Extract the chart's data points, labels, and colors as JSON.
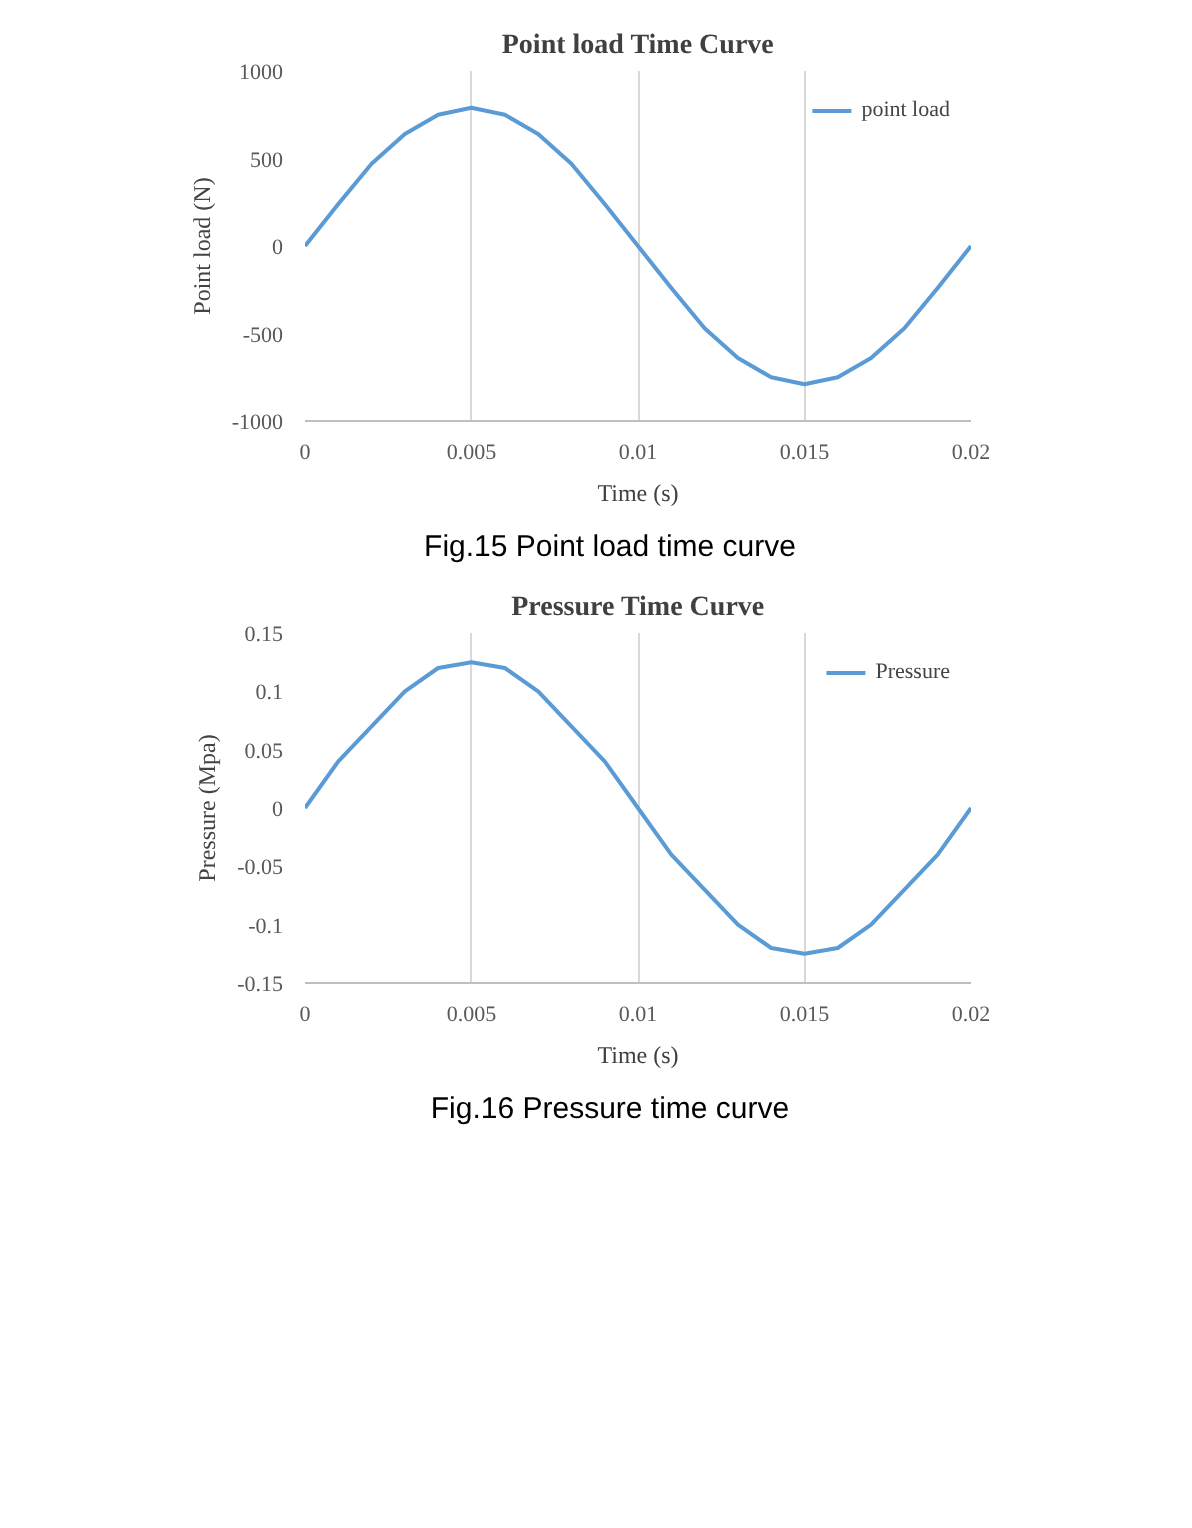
{
  "chart_data": [
    {
      "type": "line",
      "title": "Point load Time Curve",
      "xlabel": "Time (s)",
      "ylabel": "Point load (N)",
      "annotations": [
        "Fig.15 Point load time curve"
      ],
      "x": [
        0,
        0.001,
        0.002,
        0.003,
        0.004,
        0.005,
        0.006,
        0.007,
        0.008,
        0.009,
        0.01,
        0.011,
        0.012,
        0.013,
        0.014,
        0.015,
        0.016,
        0.017,
        0.018,
        0.019,
        0.02
      ],
      "series": [
        {
          "name": "point load",
          "color": "#5b9bd5",
          "values": [
            0,
            240,
            470,
            640,
            750,
            790,
            750,
            640,
            470,
            240,
            0,
            -240,
            -470,
            -640,
            -750,
            -790,
            -750,
            -640,
            -470,
            -240,
            0
          ]
        }
      ],
      "xlim": [
        0,
        0.02
      ],
      "xticks": [
        0,
        0.005,
        0.01,
        0.015,
        0.02
      ],
      "ylim": [
        -1000,
        1000
      ],
      "yticks": [
        -1000,
        -500,
        0,
        500,
        1000
      ],
      "grid": "x",
      "legend": "top right"
    },
    {
      "type": "line",
      "title": "Pressure Time Curve",
      "xlabel": "Time (s)",
      "ylabel": "Pressure (Mpa)",
      "annotations": [
        "Fig.16 Pressure time curve"
      ],
      "x": [
        0,
        0.001,
        0.002,
        0.003,
        0.004,
        0.005,
        0.006,
        0.007,
        0.008,
        0.009,
        0.01,
        0.011,
        0.012,
        0.013,
        0.014,
        0.015,
        0.016,
        0.017,
        0.018,
        0.019,
        0.02
      ],
      "series": [
        {
          "name": "Pressure",
          "color": "#5b9bd5",
          "values": [
            0,
            0.04,
            0.07,
            0.1,
            0.12,
            0.125,
            0.12,
            0.1,
            0.07,
            0.04,
            0,
            -0.04,
            -0.07,
            -0.1,
            -0.12,
            -0.125,
            -0.12,
            -0.1,
            -0.07,
            -0.04,
            0
          ]
        }
      ],
      "xlim": [
        0,
        0.02
      ],
      "xticks": [
        0,
        0.005,
        0.01,
        0.015,
        0.02
      ],
      "ylim": [
        -0.15,
        0.15
      ],
      "yticks": [
        -0.15,
        -0.1,
        -0.05,
        0,
        0.05,
        0.1,
        0.15
      ],
      "grid": "x",
      "legend": "top right"
    }
  ]
}
